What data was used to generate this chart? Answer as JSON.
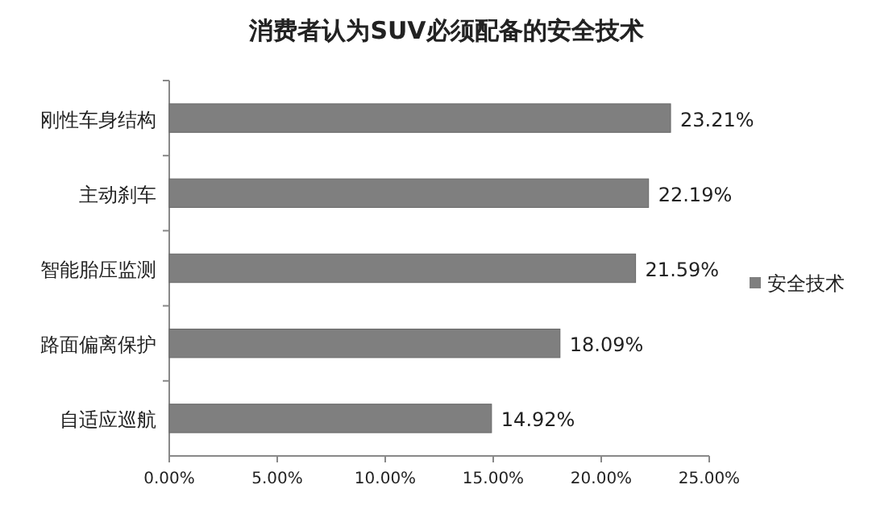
{
  "chart_data": {
    "type": "bar",
    "orientation": "horizontal",
    "title": "消费者认为SUV必须配备的安全技术",
    "categories": [
      "刚性车身结构",
      "主动刹车",
      "智能胎压监测",
      "路面偏离保护",
      "自适应巡航"
    ],
    "series": [
      {
        "name": "安全技术",
        "color": "#7f7f7f",
        "values": [
          23.21,
          22.19,
          21.59,
          18.09,
          14.92
        ],
        "value_labels": [
          "23.21%",
          "22.19%",
          "21.59%",
          "18.09%",
          "14.92%"
        ]
      }
    ],
    "xlim": [
      0,
      25
    ],
    "xticks": [
      {
        "value": 0,
        "label": "0.00%"
      },
      {
        "value": 5,
        "label": "5.00%"
      },
      {
        "value": 10,
        "label": "10.00%"
      },
      {
        "value": 15,
        "label": "15.00%"
      },
      {
        "value": 20,
        "label": "20.00%"
      },
      {
        "value": 25,
        "label": "25.00%"
      }
    ],
    "grid": false,
    "legend": "right"
  }
}
